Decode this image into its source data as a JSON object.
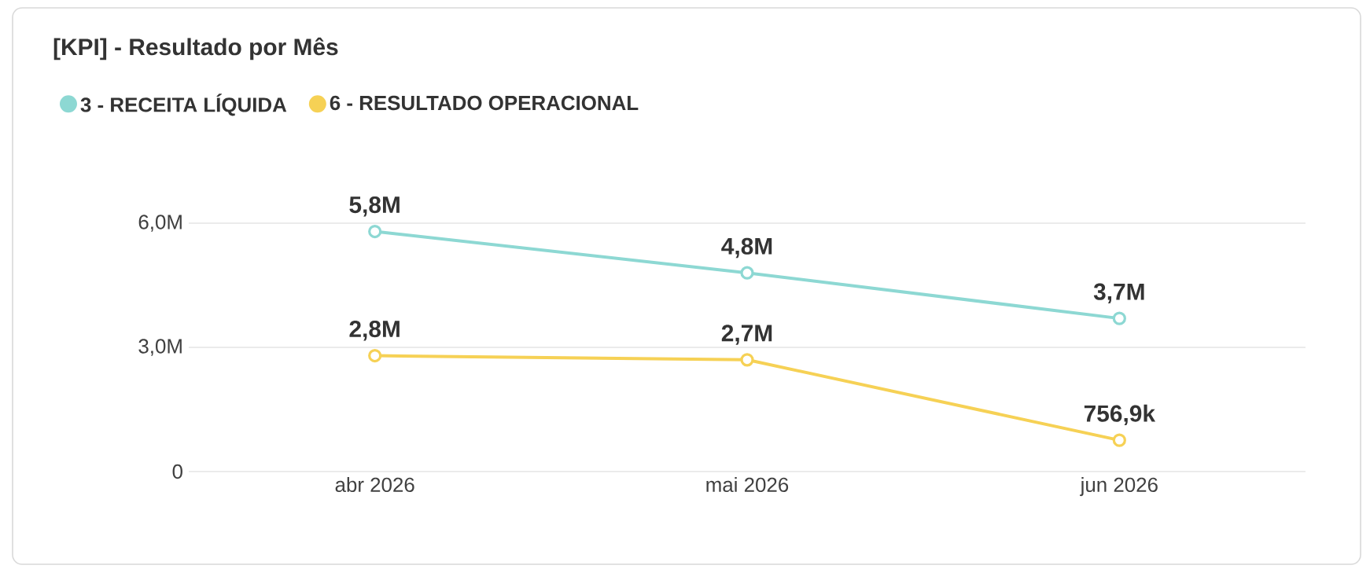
{
  "chart_data": {
    "type": "line",
    "title": "[KPI] - Resultado por Mês",
    "categories": [
      "abr 2026",
      "mai 2026",
      "jun 2026"
    ],
    "series": [
      {
        "name": "3 - RECEITA LÍQUIDA",
        "color": "#8dd8d3",
        "values": [
          5800000,
          4800000,
          3700000
        ],
        "value_labels": [
          "5,8M",
          "4,8M",
          "3,7M"
        ]
      },
      {
        "name": "6 - RESULTADO OPERACIONAL",
        "color": "#f6d155",
        "values": [
          2800000,
          2700000,
          756900
        ],
        "value_labels": [
          "2,8M",
          "2,7M",
          "756,9k"
        ]
      }
    ],
    "ylim": [
      0,
      6000000
    ],
    "yticks": [
      0,
      {
        "value": 3000000,
        "label": "3,0M"
      },
      {
        "value": 6000000,
        "label": "6,0M"
      }
    ],
    "grid": "y",
    "legend": "top left",
    "marker": "circle",
    "line_style": "solid"
  }
}
